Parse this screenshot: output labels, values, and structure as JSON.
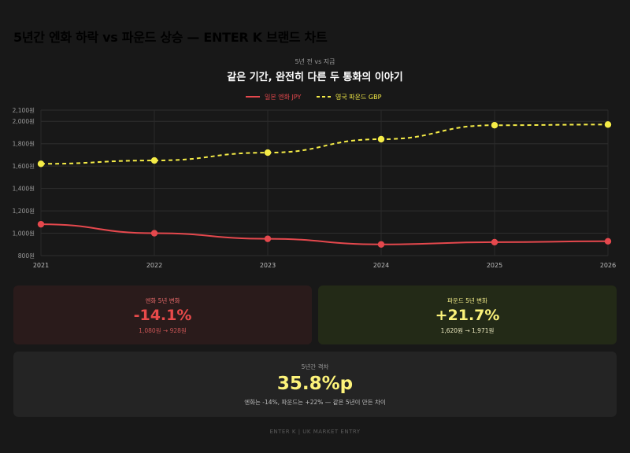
{
  "page": {
    "title": "5년간 엔화 하락 vs 파운드 상승 — ENTER K 브랜드 차트"
  },
  "chart_data": {
    "type": "line",
    "subtitle": "5년 전 vs 지금",
    "title": "같은 기간, 완전히 다른 두 통화의 이야기",
    "x": [
      "2021",
      "2022",
      "2023",
      "2024",
      "2025",
      "2026"
    ],
    "ylim": [
      800,
      2100
    ],
    "yticks": [
      800,
      1000,
      1200,
      1400,
      1600,
      1800,
      2000,
      2100
    ],
    "ytick_labels": [
      "800원",
      "1,000원",
      "1,200원",
      "1,400원",
      "1,600원",
      "1,800원",
      "2,000원",
      "2,100원"
    ],
    "grid": true,
    "legend_position": "top",
    "series": [
      {
        "name": "일본 엔화 JPY",
        "values": [
          1080,
          1000,
          950,
          900,
          920,
          928
        ],
        "color": "#e5484d",
        "dash": false
      },
      {
        "name": "영국 파운드 GBP",
        "values": [
          1620,
          1650,
          1720,
          1840,
          1965,
          1971
        ],
        "color": "#f5ec47",
        "dash": true
      }
    ]
  },
  "cards": {
    "jpy": {
      "label": "엔화 5년 변화",
      "value": "-14.1%",
      "detail": "1,080원 → 928원"
    },
    "gbp": {
      "label": "파운드 5년 변화",
      "value": "+21.7%",
      "detail": "1,620원 → 1,971원"
    },
    "gap": {
      "label": "5년간 격차",
      "value": "35.8%p",
      "detail": "엔화는 -14%, 파운드는 +22% — 같은 5년이 만든 차이"
    }
  },
  "footer": "ENTER K | UK MARKET ENTRY"
}
